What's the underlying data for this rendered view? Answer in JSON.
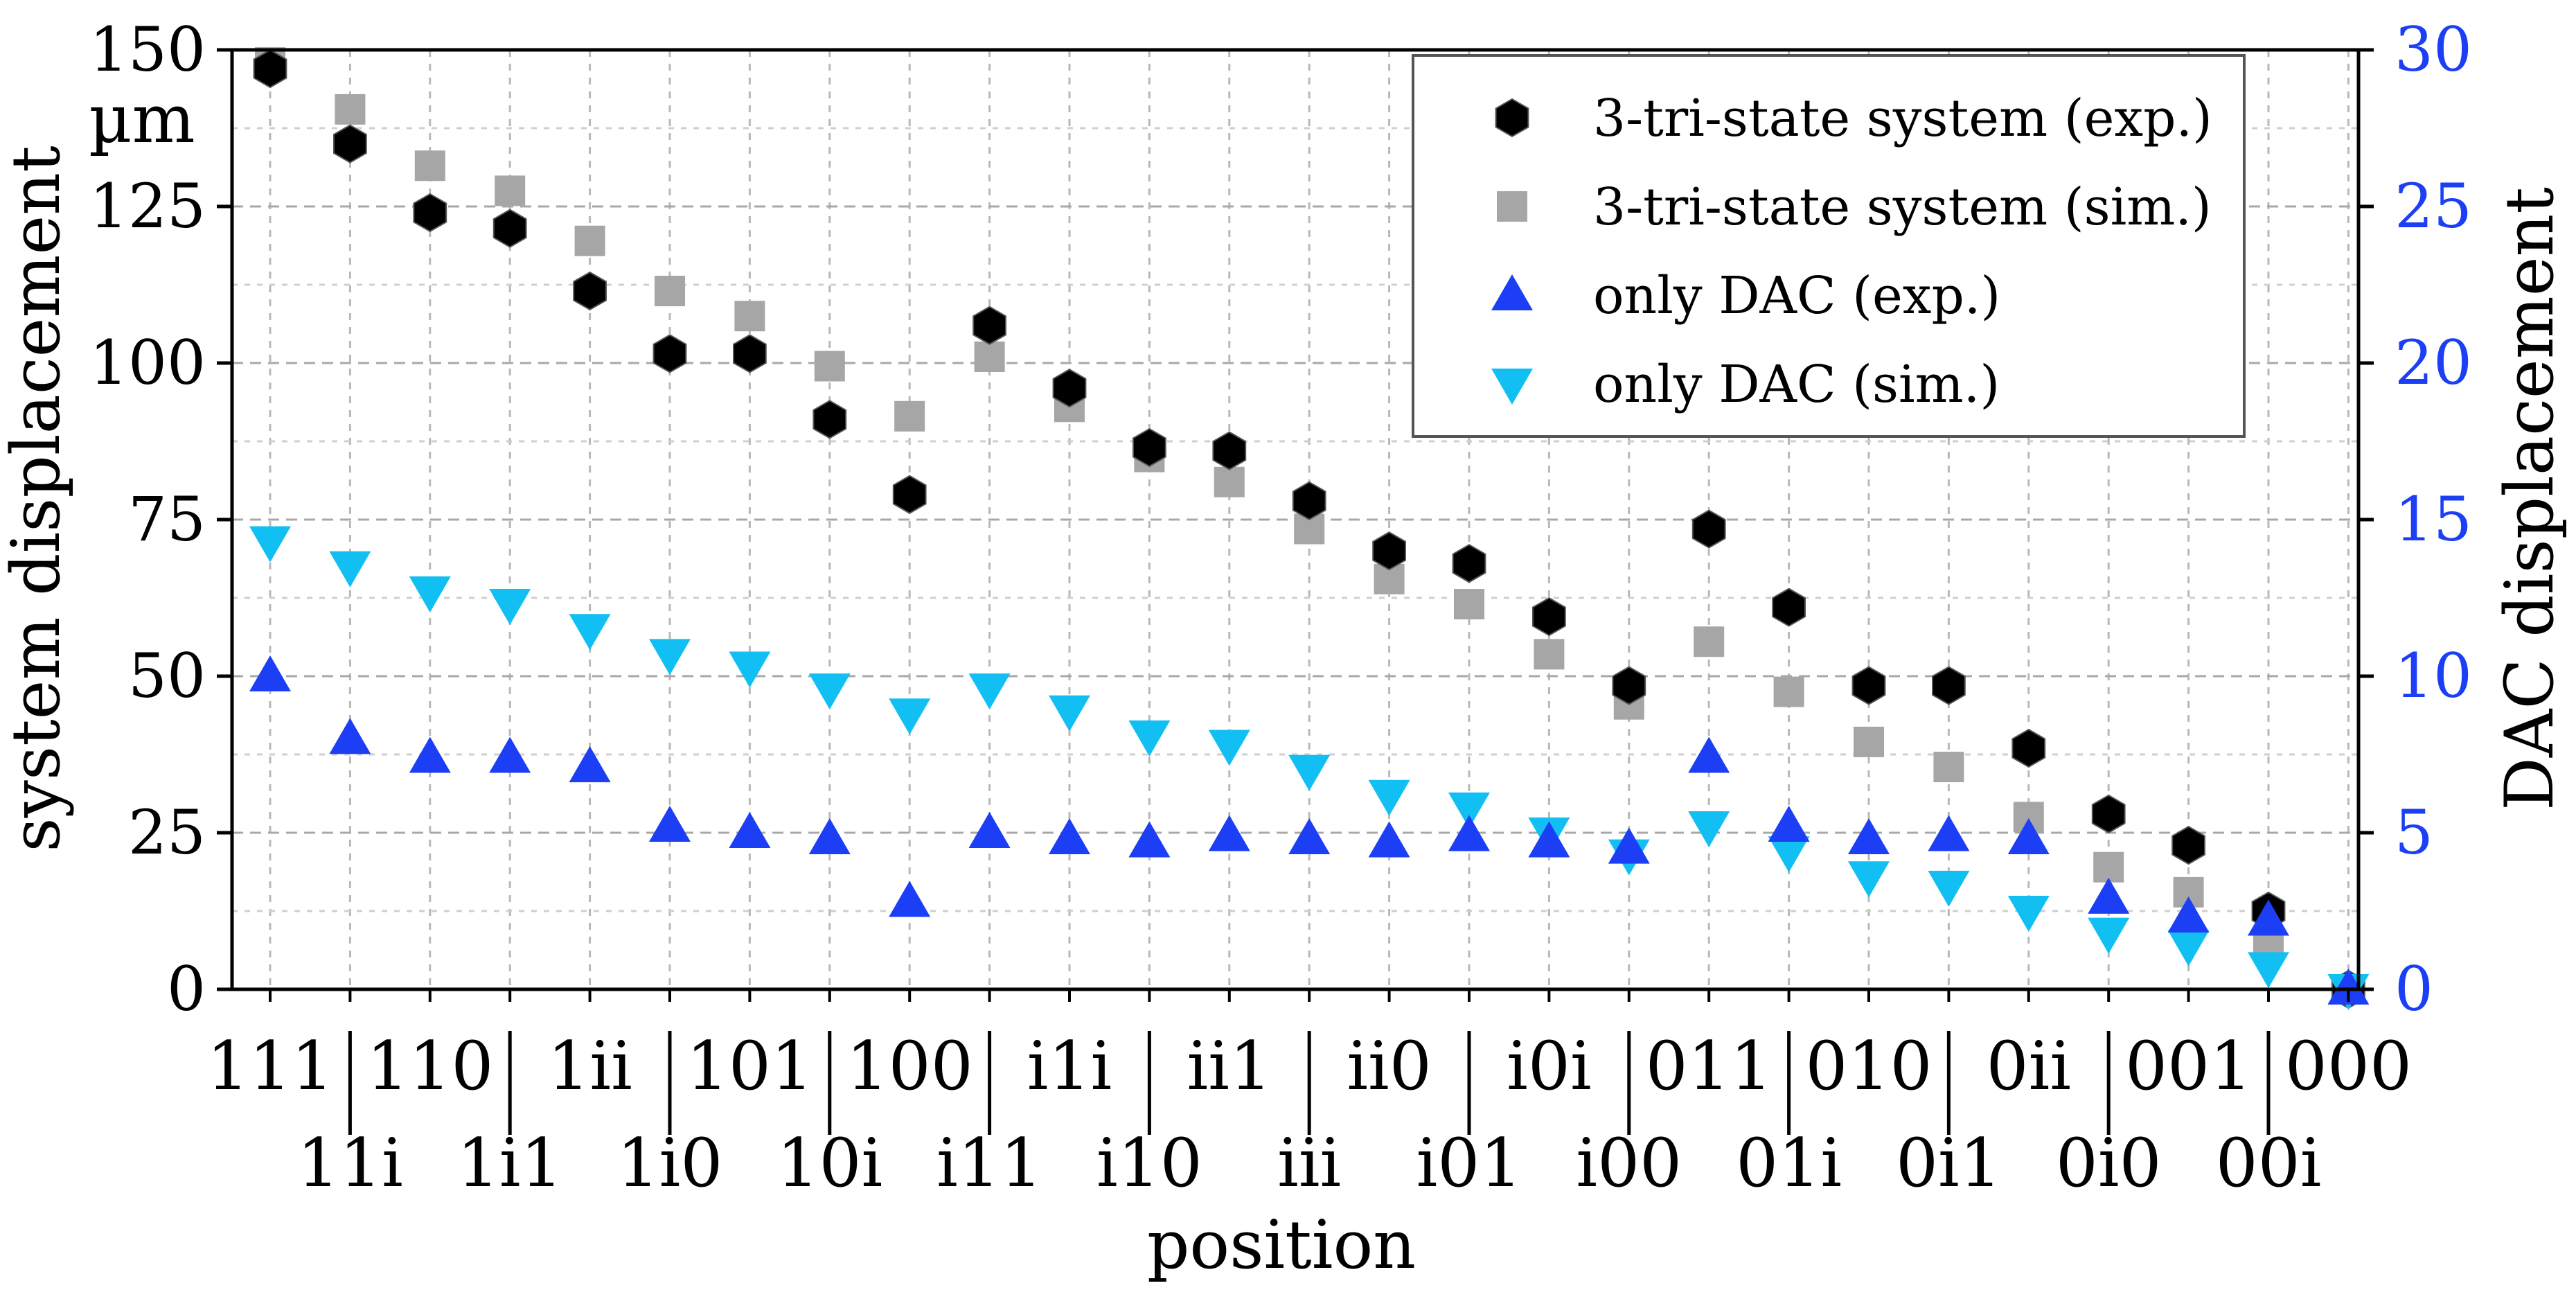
{
  "chart_data": {
    "type": "scatter",
    "xlabel": "position",
    "ylabel": "system displacement",
    "ylabel_unit": "µm",
    "y2label": "DAC displacement",
    "ylim": [
      0,
      150
    ],
    "y2lim": [
      0,
      30
    ],
    "yticks": [
      0,
      25,
      50,
      75,
      100,
      125,
      150
    ],
    "y2ticks": [
      0,
      5,
      10,
      15,
      20,
      25,
      30
    ],
    "grid": true,
    "legend_position": "top-right",
    "categories": [
      "111",
      "11i",
      "110",
      "1i1",
      "1ii",
      "1i0",
      "101",
      "10i",
      "100",
      "i11",
      "i1i",
      "i10",
      "ii1",
      "iii",
      "ii0",
      "i01",
      "i0i",
      "i00",
      "011",
      "01i",
      "010",
      "0i1",
      "0ii",
      "0i0",
      "001",
      "00i",
      "000"
    ],
    "series": [
      {
        "name": "3-tri-state system (exp.)",
        "axis": "left",
        "marker": "hexagon",
        "color": "#000000",
        "values": [
          147,
          135,
          124,
          121.5,
          111.5,
          101.5,
          101.5,
          91,
          79,
          106,
          96,
          86.5,
          86,
          78,
          70,
          68,
          59.5,
          48.5,
          73.5,
          61,
          48.5,
          48.5,
          38.5,
          28,
          23,
          12.5,
          0
        ]
      },
      {
        "name": "3-tri-state system (sim.)",
        "axis": "left",
        "marker": "square",
        "color": "#a6a6a6",
        "values": [
          148,
          140.5,
          131.5,
          127.5,
          119.5,
          111.5,
          107.5,
          99.5,
          91.5,
          101,
          93,
          85,
          81,
          73.5,
          65.5,
          61.5,
          53.5,
          45.5,
          55.5,
          47.5,
          39.5,
          35.5,
          27.5,
          19.5,
          15.5,
          7.5,
          0
        ]
      },
      {
        "name": "only DAC (exp.)",
        "axis": "right",
        "marker": "triangle-up",
        "color": "#1c3ff5",
        "values": [
          10,
          8,
          7.4,
          7.4,
          7.1,
          5.2,
          5,
          4.8,
          2.8,
          5,
          4.8,
          4.7,
          4.9,
          4.8,
          4.7,
          4.9,
          4.7,
          4.5,
          7.4,
          5.2,
          4.8,
          4.9,
          4.8,
          2.9,
          2.3,
          2.2,
          0
        ]
      },
      {
        "name": "only DAC (sim.)",
        "axis": "right",
        "marker": "triangle-down",
        "color": "#12bff2",
        "values": [
          14.3,
          13.5,
          12.7,
          12.3,
          11.5,
          10.7,
          10.3,
          9.6,
          8.8,
          9.6,
          8.9,
          8.1,
          7.8,
          7.0,
          6.2,
          5.8,
          5.0,
          4.3,
          5.2,
          4.4,
          3.6,
          3.3,
          2.5,
          1.8,
          1.4,
          0.7,
          0
        ]
      }
    ]
  }
}
